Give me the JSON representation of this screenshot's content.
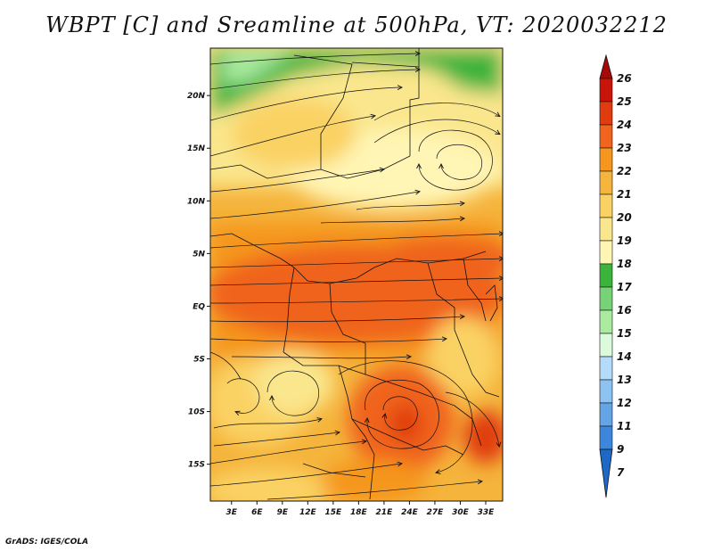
{
  "title": "WBPT [C] and Sreamline at 500hPa, VT: 2020032212",
  "credit": "GrADS: IGES/COLA",
  "map": {
    "lon_labels": [
      "3E",
      "6E",
      "9E",
      "12E",
      "15E",
      "18E",
      "21E",
      "24E",
      "27E",
      "30E",
      "33E"
    ],
    "lat_labels": [
      "20N",
      "15N",
      "10N",
      "5N",
      "EQ",
      "5S",
      "10S",
      "15S"
    ],
    "lon_range": [
      0.5,
      35
    ],
    "lat_range": [
      -18.5,
      24.5
    ]
  },
  "colorbar": {
    "labels": [
      "26",
      "25",
      "24",
      "23",
      "22",
      "21",
      "20",
      "19",
      "18",
      "17",
      "16",
      "15",
      "14",
      "13",
      "12",
      "11",
      "9",
      "7"
    ],
    "colors": [
      "#a50a0a",
      "#c8140a",
      "#e03c10",
      "#f0641e",
      "#f5961e",
      "#f5b43c",
      "#fad264",
      "#fae68c",
      "#fff5b4",
      "#3cb43c",
      "#78d278",
      "#aaeba0",
      "#dcfadc",
      "#b4dcfa",
      "#8cc3f0",
      "#64a5e6",
      "#3c87dc",
      "#1e69c8"
    ]
  }
}
